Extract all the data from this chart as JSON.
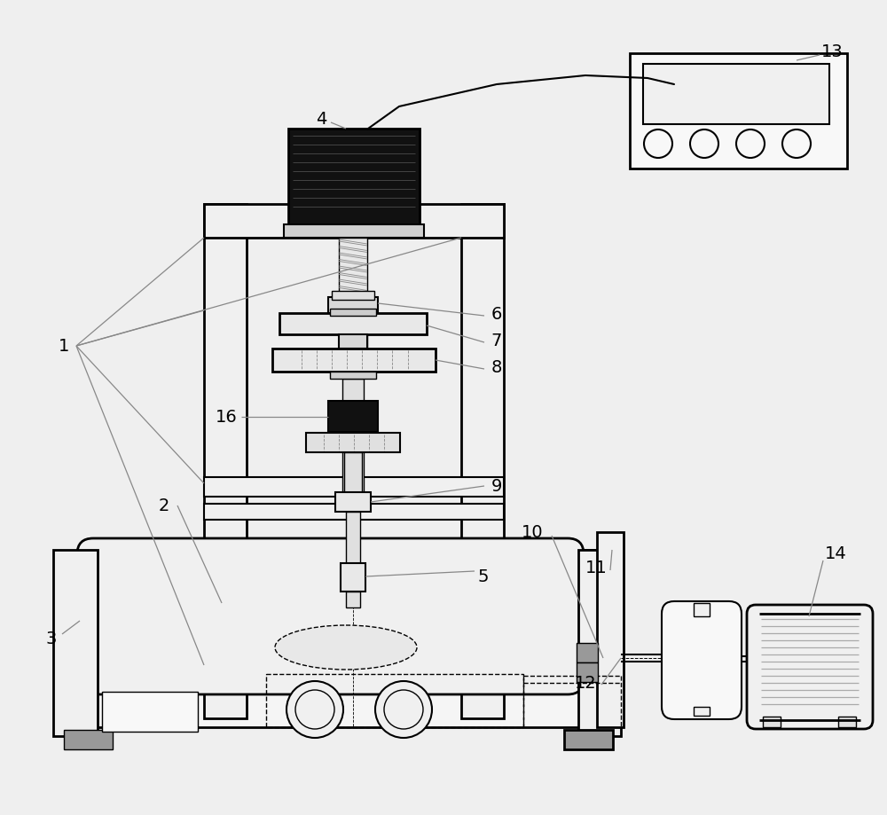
{
  "bg_color": "#efefef",
  "line_color": "#000000",
  "dark_fill": "#111111",
  "gray_fill": "#999999",
  "light_gray": "#d8d8d8",
  "white_fill": "#ffffff",
  "label_color": "#000000",
  "font_size": 14
}
